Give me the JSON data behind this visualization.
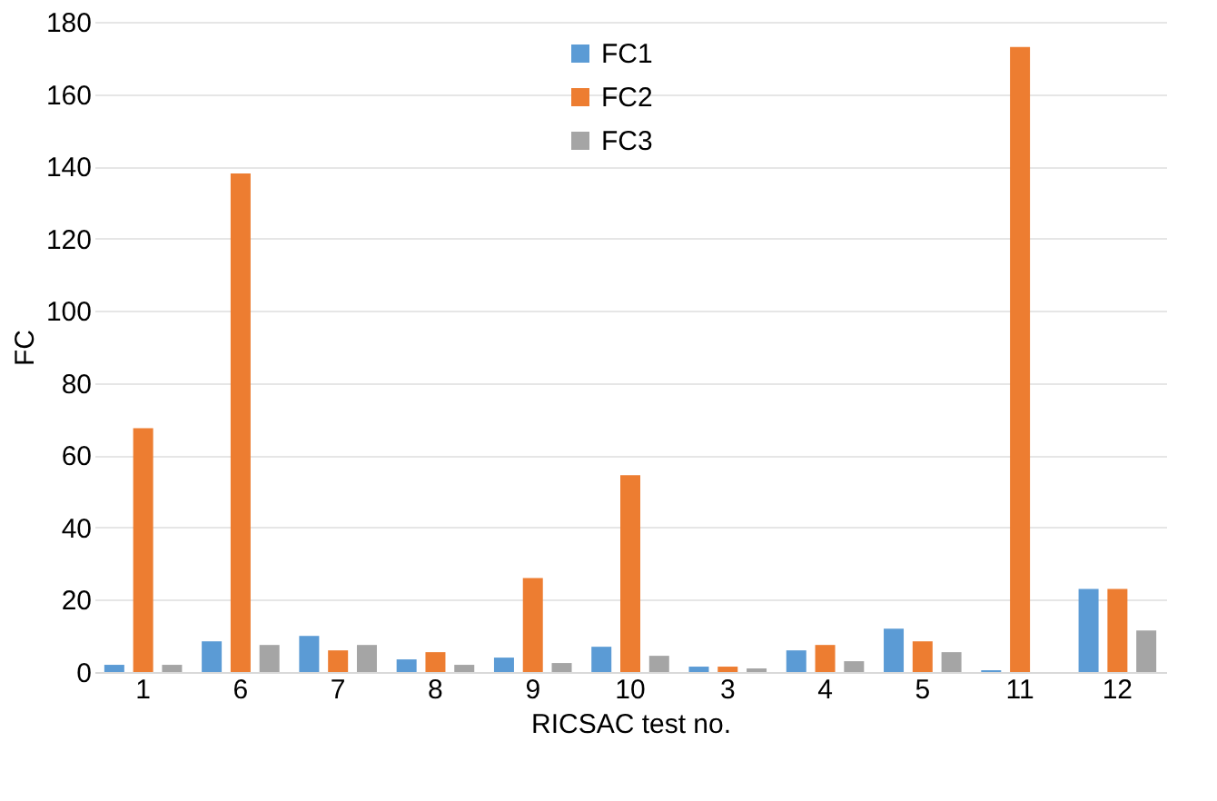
{
  "chart_data": {
    "type": "bar",
    "xlabel": "RICSAC test no.",
    "ylabel": "FC",
    "categories": [
      "1",
      "6",
      "7",
      "8",
      "9",
      "10",
      "3",
      "4",
      "5",
      "11",
      "12"
    ],
    "series": [
      {
        "name": "FC1",
        "color": "#5b9bd5",
        "values": [
          2,
          8.5,
          10,
          3.5,
          4,
          7,
          1.5,
          6,
          12,
          0.5,
          23
        ]
      },
      {
        "name": "FC2",
        "color": "#ed7d31",
        "values": [
          67.5,
          138,
          6,
          5.5,
          26,
          54.5,
          1.5,
          7.5,
          8.5,
          173,
          23
        ]
      },
      {
        "name": "FC3",
        "color": "#a5a5a5",
        "values": [
          2,
          7.5,
          7.5,
          2,
          2.5,
          4.5,
          1,
          3,
          5.5,
          0,
          11.5
        ]
      }
    ],
    "ylim": [
      0,
      180
    ],
    "yticks": [
      0,
      20,
      40,
      60,
      80,
      100,
      120,
      140,
      160,
      180
    ],
    "grid": "y",
    "legend": "top"
  }
}
